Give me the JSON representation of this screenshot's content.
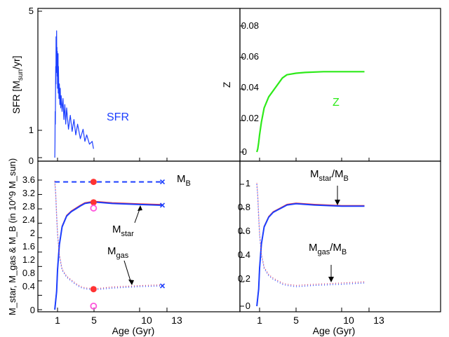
{
  "chart_data": [
    {
      "panel": "top-left",
      "type": "line",
      "ylabel": "SFR [M_sun/yr]",
      "ylabel_parts": {
        "pre": "SFR [M",
        "sub": "sun",
        "post": "/yr]"
      },
      "y_scale": "log",
      "y_ticks": [
        "5",
        "1",
        "0"
      ],
      "annotation": "SFR",
      "colors": {
        "sfr": "#1c3fff"
      },
      "series": [
        {
          "label": "SFR",
          "x": [
            0.7,
            0.72,
            0.74,
            0.76,
            0.78,
            0.8,
            0.82,
            0.84,
            0.86,
            0.88,
            0.9,
            0.92,
            0.94,
            0.96,
            0.98,
            1.0,
            1.02,
            1.04,
            1.06,
            1.08,
            1.1,
            1.15,
            1.2,
            1.25,
            1.3,
            1.35,
            1.4,
            1.5,
            1.6,
            1.7,
            1.8,
            1.9,
            2.0,
            2.2,
            2.4,
            2.6,
            2.8,
            3.0,
            3.2,
            3.5,
            3.8,
            4.0,
            4.2,
            4.5,
            4.8,
            4.95
          ],
          "y": [
            0.0,
            0.1,
            0.4,
            0.25,
            0.6,
            1.4,
            0.9,
            2.8,
            1.2,
            1.7,
            3.2,
            1.3,
            2.2,
            1.1,
            2.0,
            0.8,
            1.6,
            1.0,
            1.9,
            0.7,
            1.4,
            0.6,
            0.9,
            0.5,
            0.8,
            0.45,
            0.65,
            0.4,
            0.6,
            0.3,
            0.5,
            0.25,
            0.45,
            0.2,
            0.35,
            0.18,
            0.3,
            0.15,
            0.25,
            0.12,
            0.2,
            0.1,
            0.15,
            0.08,
            0.1,
            0.05
          ]
        }
      ]
    },
    {
      "panel": "top-right",
      "type": "line",
      "ylabel": "Z",
      "y_ticks": [
        "0.08",
        "0.06",
        "0.04",
        "0.02",
        "0"
      ],
      "ylim": [
        -0.003,
        0.09
      ],
      "annotation": "Z",
      "colors": {
        "z": "#2eea1a"
      },
      "series": [
        {
          "label": "Z",
          "x": [
            0.7,
            0.8,
            0.9,
            1.0,
            1.2,
            1.5,
            2.0,
            2.5,
            3.0,
            3.5,
            4.0,
            5.0,
            6.0,
            8.0,
            10.0,
            12.5
          ],
          "y": [
            0.0,
            0.002,
            0.006,
            0.011,
            0.019,
            0.028,
            0.035,
            0.039,
            0.043,
            0.047,
            0.049,
            0.05,
            0.0505,
            0.051,
            0.051,
            0.051
          ]
        }
      ]
    },
    {
      "panel": "bottom-left",
      "type": "line",
      "xlabel": "Age (Gyr)",
      "x_ticks": [
        "1",
        "5",
        "10",
        "13"
      ],
      "ylabel": "M_star, M_gas & M_B (in 10^9 M_sun)",
      "y_ticks": [
        "3.6",
        "3.2",
        "2.8",
        "2.4",
        "2",
        "1.6",
        "1.2",
        "0.8",
        "0.4",
        "0"
      ],
      "ylim": [
        0,
        3.9
      ],
      "annotations": {
        "mb": {
          "main": "M",
          "sub": "B"
        },
        "mstar": {
          "main": "M",
          "sub": "star"
        },
        "mgas": {
          "main": "M",
          "sub": "gas"
        }
      },
      "colors": {
        "mb": "#1c3fff",
        "mstar": "#1c3fff",
        "mstar_alt": "#ff2020",
        "mgas": "#3050ff",
        "mgas_alt": "#d03060",
        "dot": "#ff3333",
        "ring": "#ff55dd",
        "marker": "#1c3fff"
      },
      "series": [
        {
          "label": "M_B",
          "style": "dashed",
          "x": [
            0.7,
            12.5
          ],
          "y": [
            3.55,
            3.55
          ]
        },
        {
          "label": "M_star",
          "x": [
            0.7,
            0.9,
            1.0,
            1.2,
            1.5,
            2.0,
            2.5,
            3.0,
            3.5,
            4.0,
            5.0,
            7.0,
            10.0,
            12.5
          ],
          "y": [
            0.0,
            0.5,
            1.1,
            1.8,
            2.3,
            2.6,
            2.72,
            2.8,
            2.88,
            2.95,
            2.99,
            2.95,
            2.92,
            2.9
          ]
        },
        {
          "label": "M_gas",
          "style": "dotted",
          "x": [
            0.7,
            0.8,
            0.9,
            1.0,
            1.2,
            1.5,
            2.0,
            2.5,
            3.0,
            3.5,
            4.0,
            5.0,
            7.0,
            10.0,
            12.5
          ],
          "y": [
            3.55,
            3.2,
            2.6,
            2.1,
            1.5,
            1.1,
            0.9,
            0.8,
            0.7,
            0.62,
            0.58,
            0.55,
            0.6,
            0.64,
            0.66
          ]
        }
      ],
      "markers": [
        {
          "type": "dot",
          "x": 4.95,
          "y": 3.55
        },
        {
          "type": "dot",
          "x": 4.95,
          "y": 2.98
        },
        {
          "type": "dot",
          "x": 4.95,
          "y": 0.57
        },
        {
          "type": "ring",
          "x": 4.95,
          "y": 2.82
        },
        {
          "type": "ring",
          "x": 4.95,
          "y": 0.1
        },
        {
          "type": "cross",
          "x": 12.5,
          "y": 3.55
        },
        {
          "type": "cross",
          "x": 12.5,
          "y": 2.9
        },
        {
          "type": "cross",
          "x": 12.5,
          "y": 0.66
        }
      ]
    },
    {
      "panel": "bottom-right",
      "type": "line",
      "xlabel": "Age (Gyr)",
      "x_ticks": [
        "1",
        "5",
        "10",
        "13"
      ],
      "y_ticks": [
        "1",
        "0.8",
        "0.6",
        "0.4",
        "0.2",
        "0"
      ],
      "ylim": [
        -0.02,
        1.1
      ],
      "annotations": {
        "mstar_mb": {
          "main": "M",
          "sub": "star",
          "slash": "/M",
          "sub2": "B"
        },
        "mgas_mb": {
          "main": "M",
          "sub": "gas",
          "slash": "/M",
          "sub2": "B"
        }
      },
      "colors": {
        "mstar": "#1c3fff",
        "mstar_alt": "#ff2020",
        "mgas": "#3050ff",
        "mgas_alt": "#d03060"
      },
      "series": [
        {
          "label": "M_star/M_B",
          "x": [
            0.7,
            0.9,
            1.0,
            1.2,
            1.5,
            2.0,
            2.5,
            3.0,
            3.5,
            4.0,
            5.0,
            7.0,
            10.0,
            12.5
          ],
          "y": [
            0.0,
            0.14,
            0.31,
            0.51,
            0.65,
            0.73,
            0.77,
            0.79,
            0.81,
            0.83,
            0.84,
            0.83,
            0.82,
            0.82
          ]
        },
        {
          "label": "M_gas/M_B",
          "style": "dotted",
          "x": [
            0.7,
            0.8,
            0.9,
            1.0,
            1.2,
            1.5,
            2.0,
            2.5,
            3.0,
            3.5,
            4.0,
            5.0,
            7.0,
            10.0,
            12.5
          ],
          "y": [
            1.0,
            0.9,
            0.73,
            0.59,
            0.42,
            0.31,
            0.25,
            0.22,
            0.2,
            0.18,
            0.17,
            0.16,
            0.17,
            0.18,
            0.19
          ]
        }
      ]
    }
  ]
}
